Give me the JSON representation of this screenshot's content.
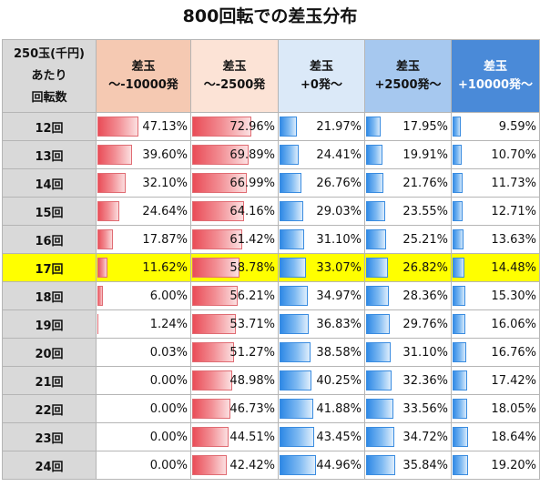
{
  "title": "800回転での差玉分布",
  "header": {
    "row_label": [
      "250玉(千円)",
      "あたり",
      "回転数"
    ],
    "columns": [
      {
        "line1": "差玉",
        "line2": "～-10000発"
      },
      {
        "line1": "差玉",
        "line2": "～-2500発"
      },
      {
        "line1": "差玉",
        "line2": "+0発～"
      },
      {
        "line1": "差玉",
        "line2": "+2500発～"
      },
      {
        "line1": "差玉",
        "line2": "+10000発～"
      }
    ]
  },
  "rows": [
    {
      "label": "12回",
      "values": [
        "47.13%",
        "72.96%",
        "21.97%",
        "17.95%",
        "9.59%"
      ]
    },
    {
      "label": "13回",
      "values": [
        "39.60%",
        "69.89%",
        "24.41%",
        "19.91%",
        "10.70%"
      ]
    },
    {
      "label": "14回",
      "values": [
        "32.10%",
        "66.99%",
        "26.76%",
        "21.76%",
        "11.73%"
      ]
    },
    {
      "label": "15回",
      "values": [
        "24.64%",
        "64.16%",
        "29.03%",
        "23.55%",
        "12.71%"
      ]
    },
    {
      "label": "16回",
      "values": [
        "17.87%",
        "61.42%",
        "31.10%",
        "25.21%",
        "13.63%"
      ]
    },
    {
      "label": "17回",
      "values": [
        "11.62%",
        "58.78%",
        "33.07%",
        "26.82%",
        "14.48%"
      ],
      "highlight": true
    },
    {
      "label": "18回",
      "values": [
        "6.00%",
        "56.21%",
        "34.97%",
        "28.36%",
        "15.30%"
      ]
    },
    {
      "label": "19回",
      "values": [
        "1.24%",
        "53.71%",
        "36.83%",
        "29.76%",
        "16.06%"
      ]
    },
    {
      "label": "20回",
      "values": [
        "0.03%",
        "51.27%",
        "38.58%",
        "31.10%",
        "16.76%"
      ]
    },
    {
      "label": "21回",
      "values": [
        "0.00%",
        "48.98%",
        "40.25%",
        "32.36%",
        "17.42%"
      ]
    },
    {
      "label": "22回",
      "values": [
        "0.00%",
        "46.73%",
        "41.88%",
        "33.56%",
        "18.05%"
      ]
    },
    {
      "label": "23回",
      "values": [
        "0.00%",
        "44.51%",
        "43.45%",
        "34.72%",
        "18.64%"
      ]
    },
    {
      "label": "24回",
      "values": [
        "0.00%",
        "42.42%",
        "44.96%",
        "35.84%",
        "19.20%"
      ]
    }
  ],
  "colors": {
    "highlight_row": "#ffff00",
    "negative_bar": "#e94a55",
    "positive_bar": "#2a86e5",
    "header_gray": "#d9d9d9"
  }
}
